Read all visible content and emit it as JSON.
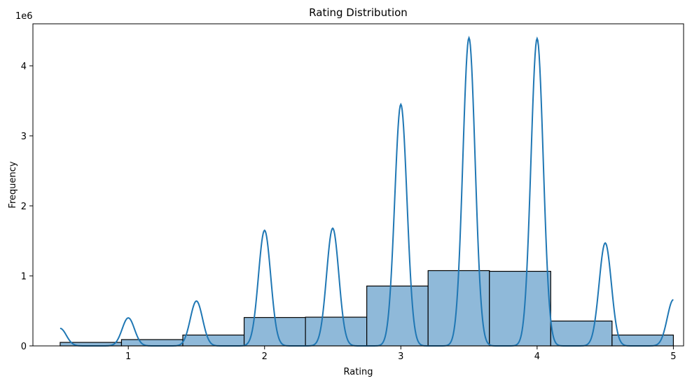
{
  "chart_data": {
    "type": "bar",
    "title": "Rating Distribution",
    "xlabel": "Rating",
    "ylabel": "Frequency",
    "y_offset_label": "1e6",
    "xlim": [
      0.3,
      5.075
    ],
    "ylim": [
      0,
      4.6
    ],
    "x_ticks": [
      1,
      2,
      3,
      4,
      5
    ],
    "y_ticks": [
      0,
      1,
      2,
      3,
      4
    ],
    "grid": false,
    "legend": "none",
    "bar_color": "#8fb9d9",
    "line_color": "#1f77b4",
    "bins": [
      {
        "x0": 0.5,
        "x1": 0.95,
        "value": 0.05
      },
      {
        "x0": 0.95,
        "x1": 1.4,
        "value": 0.09
      },
      {
        "x0": 1.4,
        "x1": 1.85,
        "value": 0.155
      },
      {
        "x0": 1.85,
        "x1": 2.3,
        "value": 0.405
      },
      {
        "x0": 2.3,
        "x1": 2.75,
        "value": 0.41
      },
      {
        "x0": 2.75,
        "x1": 3.2,
        "value": 0.855
      },
      {
        "x0": 3.2,
        "x1": 3.65,
        "value": 1.075
      },
      {
        "x0": 3.65,
        "x1": 4.1,
        "value": 1.065
      },
      {
        "x0": 4.1,
        "x1": 4.55,
        "value": 0.355
      },
      {
        "x0": 4.55,
        "x1": 5.0,
        "value": 0.155
      }
    ],
    "kde_peaks": [
      {
        "x": 0.5,
        "value": 0.25
      },
      {
        "x": 1.0,
        "value": 0.4
      },
      {
        "x": 1.5,
        "value": 0.64
      },
      {
        "x": 2.0,
        "value": 1.65
      },
      {
        "x": 2.5,
        "value": 1.68
      },
      {
        "x": 3.0,
        "value": 3.45
      },
      {
        "x": 3.5,
        "value": 4.4
      },
      {
        "x": 4.0,
        "value": 4.39
      },
      {
        "x": 4.5,
        "value": 1.47
      },
      {
        "x": 5.0,
        "value": 0.66
      }
    ]
  }
}
